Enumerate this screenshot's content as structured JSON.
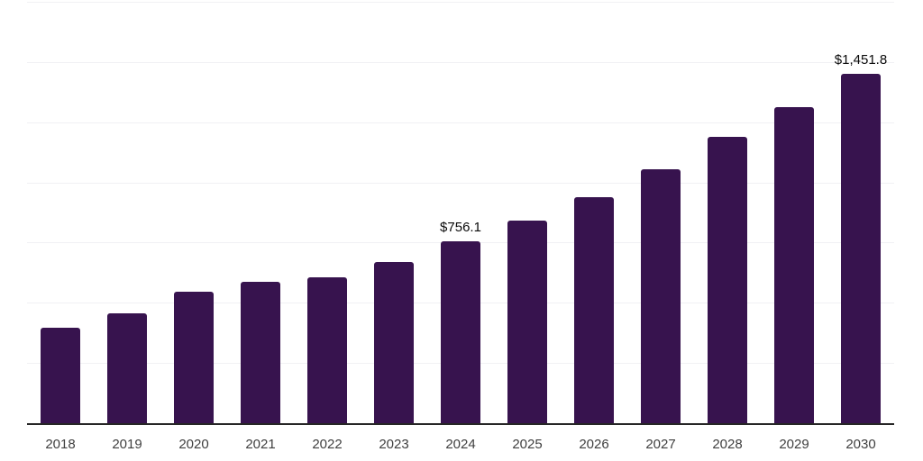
{
  "chart_data": {
    "type": "bar",
    "title": "",
    "xlabel": "",
    "ylabel": "",
    "categories": [
      "2018",
      "2019",
      "2020",
      "2021",
      "2022",
      "2023",
      "2024",
      "2025",
      "2026",
      "2027",
      "2028",
      "2029",
      "2030"
    ],
    "values": [
      395,
      458,
      547,
      589,
      607,
      671,
      756.1,
      841,
      938,
      1054,
      1189,
      1314,
      1451.8
    ],
    "annotations": {
      "2024": "$756.1",
      "2030": "$1,451.8"
    },
    "ylim": [
      0,
      1750
    ],
    "grid_step": 250,
    "grid": true,
    "y_axis_labels_visible": false,
    "legend": "none",
    "colors": {
      "bar": "#37134E",
      "axis_line": "#262626",
      "gridline": "#F1F1F4",
      "tick_label": "#3F3F3F",
      "annotation_text": "#0A0A0A",
      "background": "#FFFFFF"
    }
  }
}
